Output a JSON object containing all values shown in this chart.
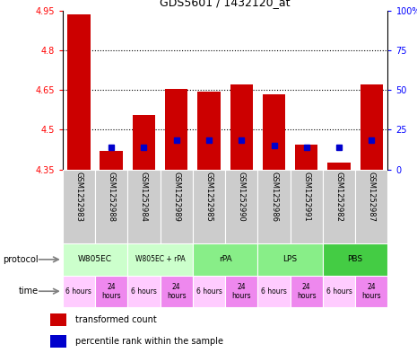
{
  "title": "GDS5601 / 1432120_at",
  "samples": [
    "GSM1252983",
    "GSM1252988",
    "GSM1252984",
    "GSM1252989",
    "GSM1252985",
    "GSM1252990",
    "GSM1252986",
    "GSM1252991",
    "GSM1252982",
    "GSM1252987"
  ],
  "bar_tops": [
    4.935,
    4.42,
    4.555,
    4.655,
    4.645,
    4.67,
    4.635,
    4.445,
    4.375,
    4.67
  ],
  "bar_bottoms": [
    4.35,
    4.35,
    4.35,
    4.35,
    4.35,
    4.35,
    4.35,
    4.35,
    4.35,
    4.35
  ],
  "percentile_vals": [
    null,
    4.435,
    4.435,
    4.46,
    4.46,
    4.46,
    4.44,
    4.435,
    4.435,
    4.46
  ],
  "bar_color": "#cc0000",
  "percentile_color": "#0000cc",
  "ylim_left": [
    4.35,
    4.95
  ],
  "ylim_right": [
    0,
    100
  ],
  "yticks_left": [
    4.35,
    4.5,
    4.65,
    4.8,
    4.95
  ],
  "ytick_labels_left": [
    "4.35",
    "4.5",
    "4.65",
    "4.8",
    "4.95"
  ],
  "yticks_right": [
    0,
    25,
    50,
    75,
    100
  ],
  "ytick_labels_right": [
    "0",
    "25",
    "50",
    "75",
    "100%"
  ],
  "hlines": [
    4.5,
    4.65,
    4.8
  ],
  "protocols": [
    {
      "label": "W805EC",
      "start": 0,
      "end": 2,
      "color": "#ccffcc"
    },
    {
      "label": "W805EC + rPA",
      "start": 2,
      "end": 4,
      "color": "#ccffcc"
    },
    {
      "label": "rPA",
      "start": 4,
      "end": 6,
      "color": "#88ee88"
    },
    {
      "label": "LPS",
      "start": 6,
      "end": 8,
      "color": "#88ee88"
    },
    {
      "label": "PBS",
      "start": 8,
      "end": 10,
      "color": "#44cc44"
    }
  ],
  "times": [
    {
      "label": "6 hours",
      "start": 0,
      "end": 1,
      "color": "#ffccff"
    },
    {
      "label": "24\nhours",
      "start": 1,
      "end": 2,
      "color": "#ee88ee"
    },
    {
      "label": "6 hours",
      "start": 2,
      "end": 3,
      "color": "#ffccff"
    },
    {
      "label": "24\nhours",
      "start": 3,
      "end": 4,
      "color": "#ee88ee"
    },
    {
      "label": "6 hours",
      "start": 4,
      "end": 5,
      "color": "#ffccff"
    },
    {
      "label": "24\nhours",
      "start": 5,
      "end": 6,
      "color": "#ee88ee"
    },
    {
      "label": "6 hours",
      "start": 6,
      "end": 7,
      "color": "#ffccff"
    },
    {
      "label": "24\nhours",
      "start": 7,
      "end": 8,
      "color": "#ee88ee"
    },
    {
      "label": "6 hours",
      "start": 8,
      "end": 9,
      "color": "#ffccff"
    },
    {
      "label": "24\nhours",
      "start": 9,
      "end": 10,
      "color": "#ee88ee"
    }
  ],
  "sample_bg_color": "#cccccc",
  "legend_red_label": "transformed count",
  "legend_blue_label": "percentile rank within the sample"
}
